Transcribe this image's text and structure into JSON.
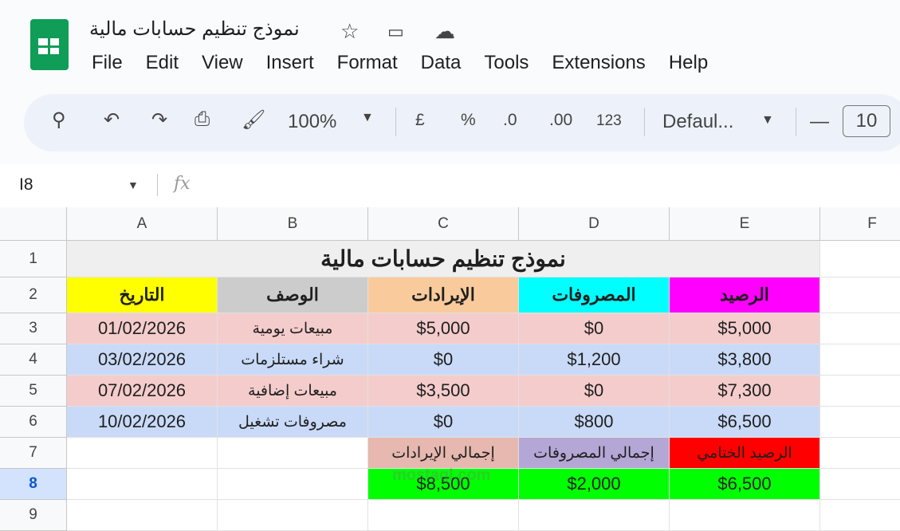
{
  "app": {
    "title": "نموذج تنظيم حسابات مالية",
    "menu": [
      "File",
      "Edit",
      "View",
      "Insert",
      "Format",
      "Data",
      "Tools",
      "Extensions",
      "Help"
    ]
  },
  "toolbar": {
    "zoom": "100%",
    "currency": "£",
    "percent": "%",
    "dec_decrease": ".0",
    "dec_increase": ".00",
    "number_format": "123",
    "font": "Defaul...",
    "font_size": "10",
    "minus": "—"
  },
  "formula_bar": {
    "cell_ref": "I8",
    "fx": "fx",
    "value": ""
  },
  "columns": [
    "A",
    "B",
    "C",
    "D",
    "E",
    "F"
  ],
  "rows": [
    "1",
    "2",
    "3",
    "4",
    "5",
    "6",
    "7",
    "8",
    "9"
  ],
  "selected_row": "8",
  "sheet": {
    "title": "نموذج تنظيم حسابات مالية",
    "headers": [
      {
        "text": "التاريخ",
        "color": "#ffff00"
      },
      {
        "text": "الوصف",
        "color": "#cccccc"
      },
      {
        "text": "الإيرادات",
        "color": "#f9cb9c"
      },
      {
        "text": "المصروفات",
        "color": "#00ffff"
      },
      {
        "text": "الرصيد",
        "color": "#ff00ff"
      }
    ],
    "data": [
      {
        "cells": [
          "01/02/2026",
          "مبيعات يومية",
          "$5,000",
          "$0",
          "$5,000"
        ],
        "color": "#f4cccc"
      },
      {
        "cells": [
          "03/02/2026",
          "شراء مستلزمات",
          "$0",
          "$1,200",
          "$3,800"
        ],
        "color": "#c9daf8"
      },
      {
        "cells": [
          "07/02/2026",
          "مبيعات إضافية",
          "$3,500",
          "$0",
          "$7,300"
        ],
        "color": "#f4cccc"
      },
      {
        "cells": [
          "10/02/2026",
          "مصروفات تشغيل",
          "$0",
          "$800",
          "$6,500"
        ],
        "color": "#c9daf8"
      }
    ],
    "summary_labels": [
      {
        "text": "إجمالي الإيرادات",
        "color": "#e6b8af"
      },
      {
        "text": "إجمالي المصروفات",
        "color": "#b4a7d6"
      },
      {
        "text": "الرصيد الختامي",
        "color": "#ff0000"
      }
    ],
    "summary_values": [
      {
        "text": "$8,500",
        "color": "#00ff00"
      },
      {
        "text": "$2,000",
        "color": "#00ff00"
      },
      {
        "text": "$6,500",
        "color": "#00ff00"
      }
    ]
  },
  "watermark": "mostaql.com"
}
